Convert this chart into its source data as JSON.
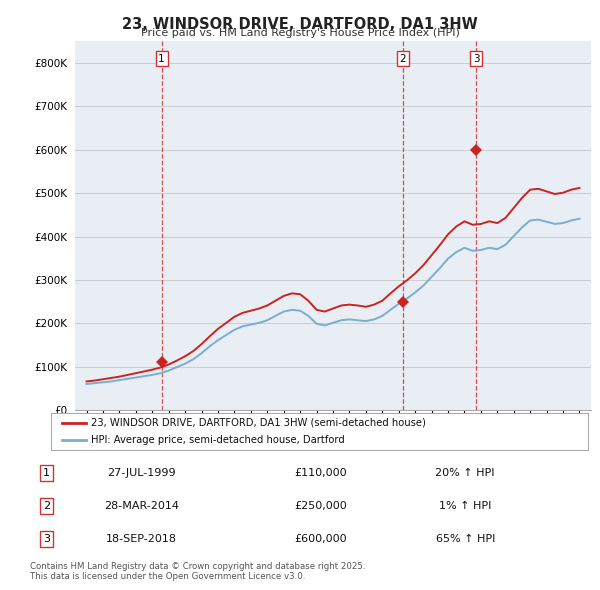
{
  "title": "23, WINDSOR DRIVE, DARTFORD, DA1 3HW",
  "subtitle": "Price paid vs. HM Land Registry's House Price Index (HPI)",
  "ylim": [
    0,
    850000
  ],
  "yticks": [
    0,
    100000,
    200000,
    300000,
    400000,
    500000,
    600000,
    700000,
    800000
  ],
  "ytick_labels": [
    "£0",
    "£100K",
    "£200K",
    "£300K",
    "£400K",
    "£500K",
    "£600K",
    "£700K",
    "£800K"
  ],
  "sale_dates": [
    1999.57,
    2014.24,
    2018.72
  ],
  "sale_prices": [
    110000,
    250000,
    600000
  ],
  "sale_labels": [
    "1",
    "2",
    "3"
  ],
  "hpi_color": "#7aadcf",
  "price_color": "#cc2222",
  "vline_color": "#cc3333",
  "grid_color": "#cccccc",
  "bg_color": "#e8eef4",
  "legend_entries": [
    "23, WINDSOR DRIVE, DARTFORD, DA1 3HW (semi-detached house)",
    "HPI: Average price, semi-detached house, Dartford"
  ],
  "table_data": [
    [
      "1",
      "27-JUL-1999",
      "£110,000",
      "20% ↑ HPI"
    ],
    [
      "2",
      "28-MAR-2014",
      "£250,000",
      "1% ↑ HPI"
    ],
    [
      "3",
      "18-SEP-2018",
      "£600,000",
      "65% ↑ HPI"
    ]
  ],
  "footer": "Contains HM Land Registry data © Crown copyright and database right 2025.\nThis data is licensed under the Open Government Licence v3.0.",
  "hpi_x": [
    1995.0,
    1995.5,
    1996.0,
    1996.5,
    1997.0,
    1997.5,
    1998.0,
    1998.5,
    1999.0,
    1999.5,
    2000.0,
    2000.5,
    2001.0,
    2001.5,
    2002.0,
    2002.5,
    2003.0,
    2003.5,
    2004.0,
    2004.5,
    2005.0,
    2005.5,
    2006.0,
    2006.5,
    2007.0,
    2007.5,
    2008.0,
    2008.5,
    2009.0,
    2009.5,
    2010.0,
    2010.5,
    2011.0,
    2011.5,
    2012.0,
    2012.5,
    2013.0,
    2013.5,
    2014.0,
    2014.5,
    2015.0,
    2015.5,
    2016.0,
    2016.5,
    2017.0,
    2017.5,
    2018.0,
    2018.5,
    2019.0,
    2019.5,
    2020.0,
    2020.5,
    2021.0,
    2021.5,
    2022.0,
    2022.5,
    2023.0,
    2023.5,
    2024.0,
    2024.5,
    2025.0
  ],
  "hpi_y": [
    60000,
    62000,
    64000,
    66000,
    69000,
    72000,
    75000,
    78000,
    81000,
    85000,
    91000,
    99000,
    107000,
    117000,
    131000,
    147000,
    161000,
    173000,
    185000,
    193000,
    197000,
    201000,
    207000,
    217000,
    227000,
    231000,
    229000,
    217000,
    199000,
    195000,
    201000,
    207000,
    209000,
    207000,
    205000,
    209000,
    217000,
    231000,
    245000,
    257000,
    271000,
    287000,
    307000,
    327000,
    349000,
    364000,
    374000,
    367000,
    369000,
    374000,
    371000,
    381000,
    401000,
    421000,
    437000,
    439000,
    434000,
    429000,
    431000,
    437000,
    441000
  ],
  "price_x": [
    1995.0,
    1995.5,
    1996.0,
    1996.5,
    1997.0,
    1997.5,
    1998.0,
    1998.5,
    1999.0,
    1999.5,
    2000.0,
    2000.5,
    2001.0,
    2001.5,
    2002.0,
    2002.5,
    2003.0,
    2003.5,
    2004.0,
    2004.5,
    2005.0,
    2005.5,
    2006.0,
    2006.5,
    2007.0,
    2007.5,
    2008.0,
    2008.5,
    2009.0,
    2009.5,
    2010.0,
    2010.5,
    2011.0,
    2011.5,
    2012.0,
    2012.5,
    2013.0,
    2013.5,
    2014.0,
    2014.5,
    2015.0,
    2015.5,
    2016.0,
    2016.5,
    2017.0,
    2017.5,
    2018.0,
    2018.5,
    2019.0,
    2019.5,
    2020.0,
    2020.5,
    2021.0,
    2021.5,
    2022.0,
    2022.5,
    2023.0,
    2023.5,
    2024.0,
    2024.5,
    2025.0
  ],
  "price_y": [
    66000,
    68000,
    71000,
    74000,
    77000,
    81000,
    85000,
    89000,
    93000,
    98000,
    105000,
    114000,
    124000,
    136000,
    152000,
    170000,
    187000,
    201000,
    215000,
    224000,
    229000,
    234000,
    241000,
    252000,
    263000,
    269000,
    267000,
    252000,
    231000,
    227000,
    234000,
    241000,
    243000,
    241000,
    238000,
    243000,
    252000,
    269000,
    285000,
    299000,
    315000,
    334000,
    357000,
    380000,
    405000,
    423000,
    435000,
    427000,
    429000,
    435000,
    431000,
    443000,
    466000,
    489000,
    508000,
    510000,
    504000,
    498000,
    501000,
    508000,
    512000
  ]
}
